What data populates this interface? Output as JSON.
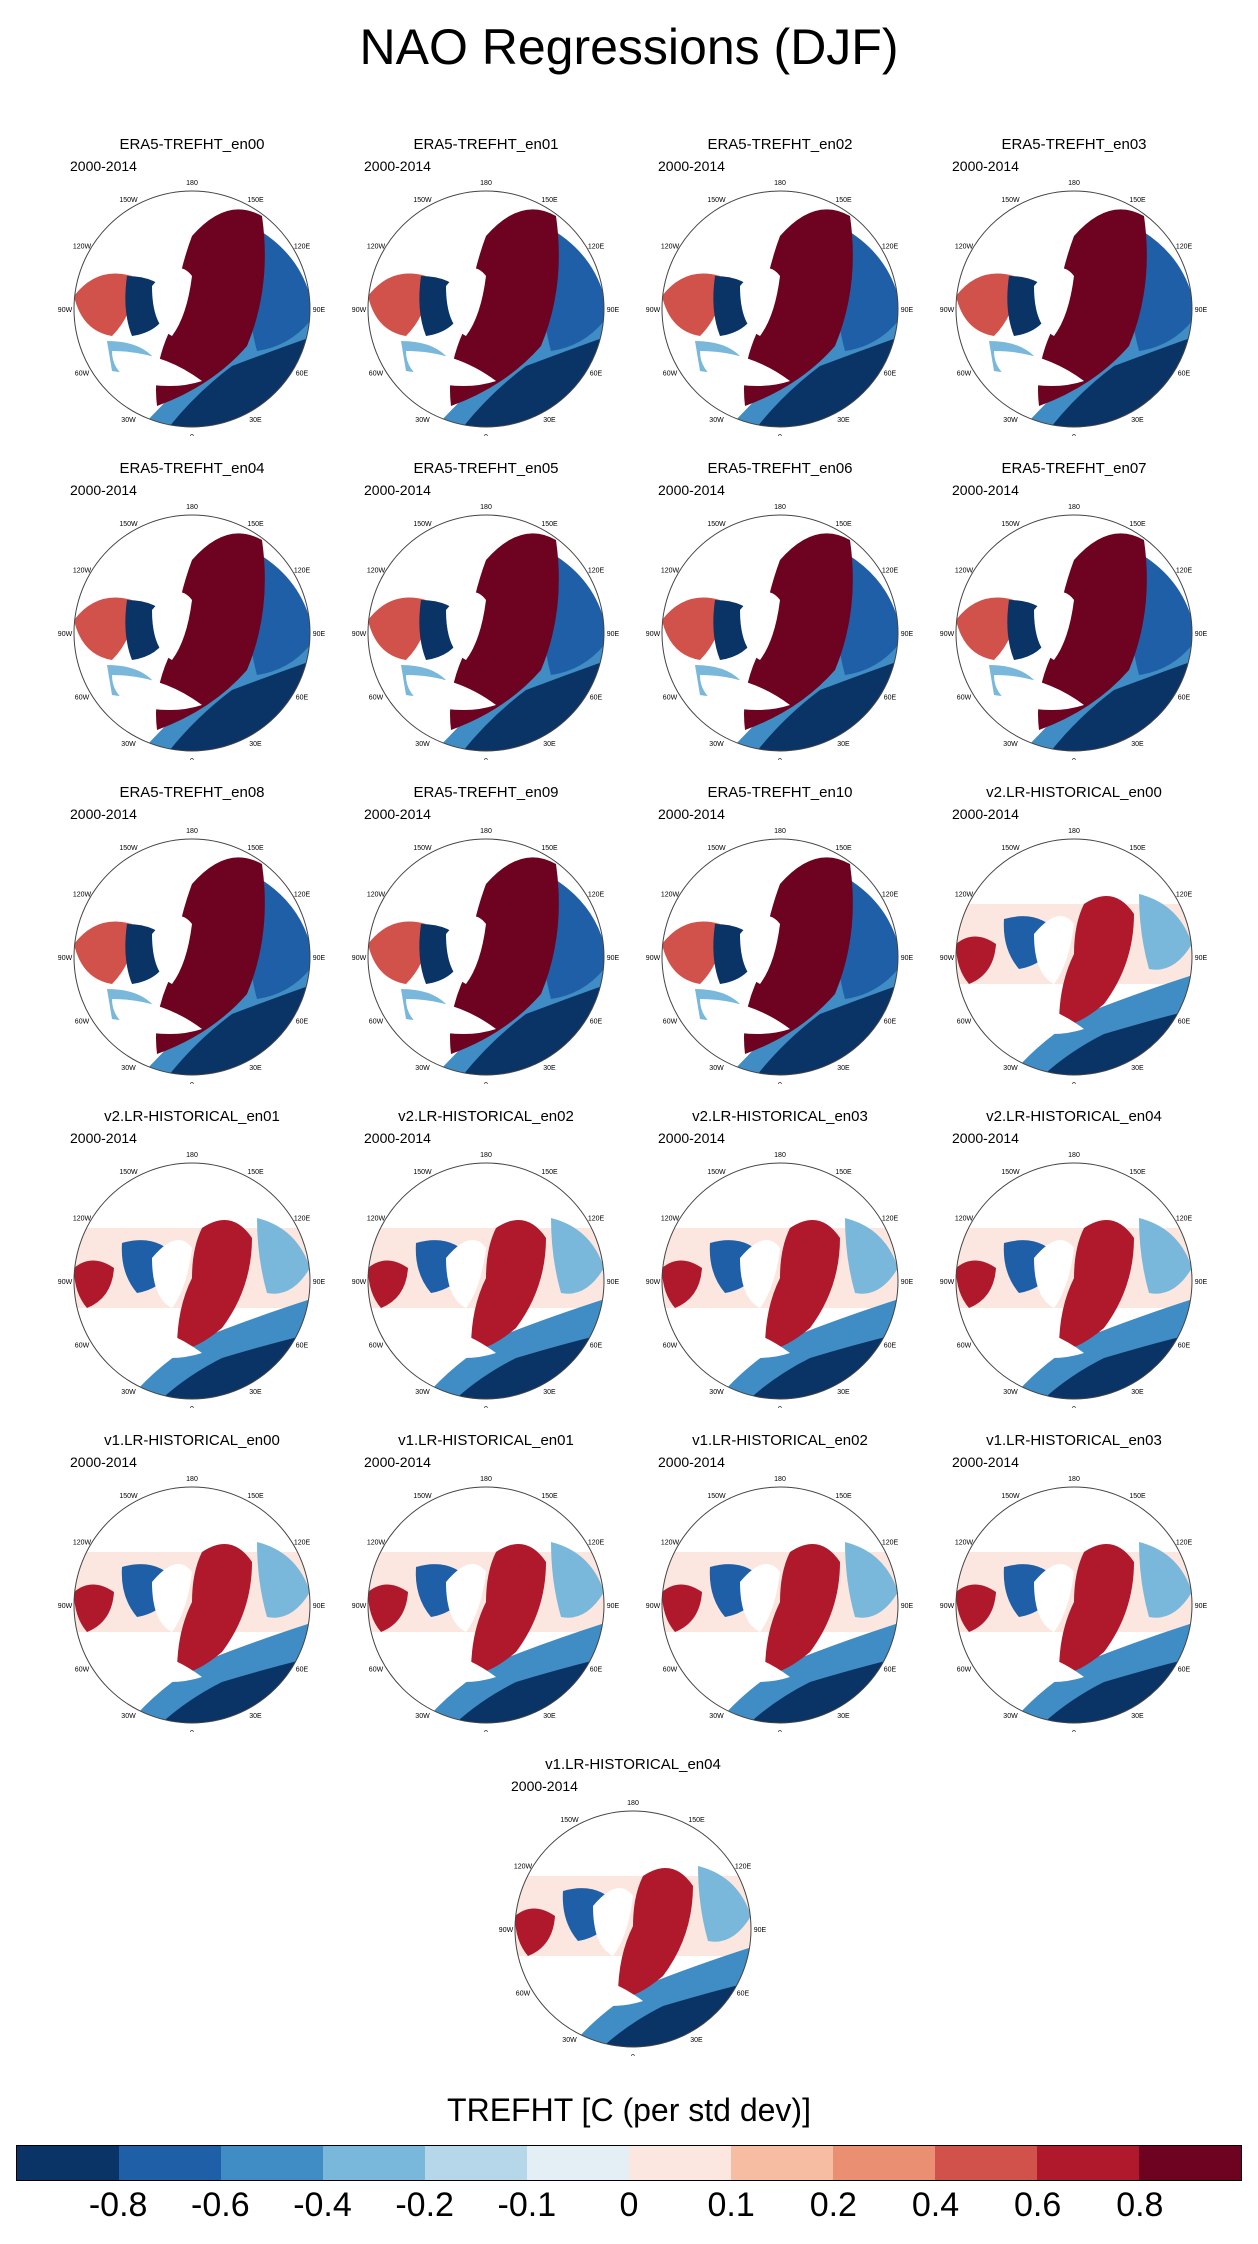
{
  "title": "NAO Regressions (DJF)",
  "period": "2000-2014",
  "lon_labels": [
    "180",
    "150E",
    "120E",
    "90E",
    "60E",
    "30E",
    "0",
    "30W",
    "60W",
    "90W",
    "120W",
    "150W"
  ],
  "panels": [
    {
      "title": "ERA5-TREFHT_en00",
      "pattern": "era5"
    },
    {
      "title": "ERA5-TREFHT_en01",
      "pattern": "era5"
    },
    {
      "title": "ERA5-TREFHT_en02",
      "pattern": "era5"
    },
    {
      "title": "ERA5-TREFHT_en03",
      "pattern": "era5"
    },
    {
      "title": "ERA5-TREFHT_en04",
      "pattern": "era5"
    },
    {
      "title": "ERA5-TREFHT_en05",
      "pattern": "era5"
    },
    {
      "title": "ERA5-TREFHT_en06",
      "pattern": "era5"
    },
    {
      "title": "ERA5-TREFHT_en07",
      "pattern": "era5"
    },
    {
      "title": "ERA5-TREFHT_en08",
      "pattern": "era5"
    },
    {
      "title": "ERA5-TREFHT_en09",
      "pattern": "era5"
    },
    {
      "title": "ERA5-TREFHT_en10",
      "pattern": "era5"
    },
    {
      "title": "v2.LR-HISTORICAL_en00",
      "pattern": "model"
    },
    {
      "title": "v2.LR-HISTORICAL_en01",
      "pattern": "model"
    },
    {
      "title": "v2.LR-HISTORICAL_en02",
      "pattern": "model"
    },
    {
      "title": "v2.LR-HISTORICAL_en03",
      "pattern": "model"
    },
    {
      "title": "v2.LR-HISTORICAL_en04",
      "pattern": "model"
    },
    {
      "title": "v1.LR-HISTORICAL_en00",
      "pattern": "model"
    },
    {
      "title": "v1.LR-HISTORICAL_en01",
      "pattern": "model"
    },
    {
      "title": "v1.LR-HISTORICAL_en02",
      "pattern": "model"
    },
    {
      "title": "v1.LR-HISTORICAL_en03",
      "pattern": "model"
    },
    {
      "title": "v1.LR-HISTORICAL_en04",
      "pattern": "model"
    }
  ],
  "colorbar": {
    "title": "TREFHT [C (per std dev)]",
    "colors": [
      "#0a3366",
      "#1f5fa8",
      "#3f8dc4",
      "#79b8da",
      "#b5d7e9",
      "#e3eef5",
      "#fbe7e0",
      "#f7bda3",
      "#ea8f72",
      "#d0524a",
      "#b0182b",
      "#6d0320"
    ],
    "labels": [
      "-0.8",
      "-0.6",
      "-0.4",
      "-0.2",
      "-0.1",
      "0",
      "0.1",
      "0.2",
      "0.4",
      "0.6",
      "0.8"
    ]
  }
}
